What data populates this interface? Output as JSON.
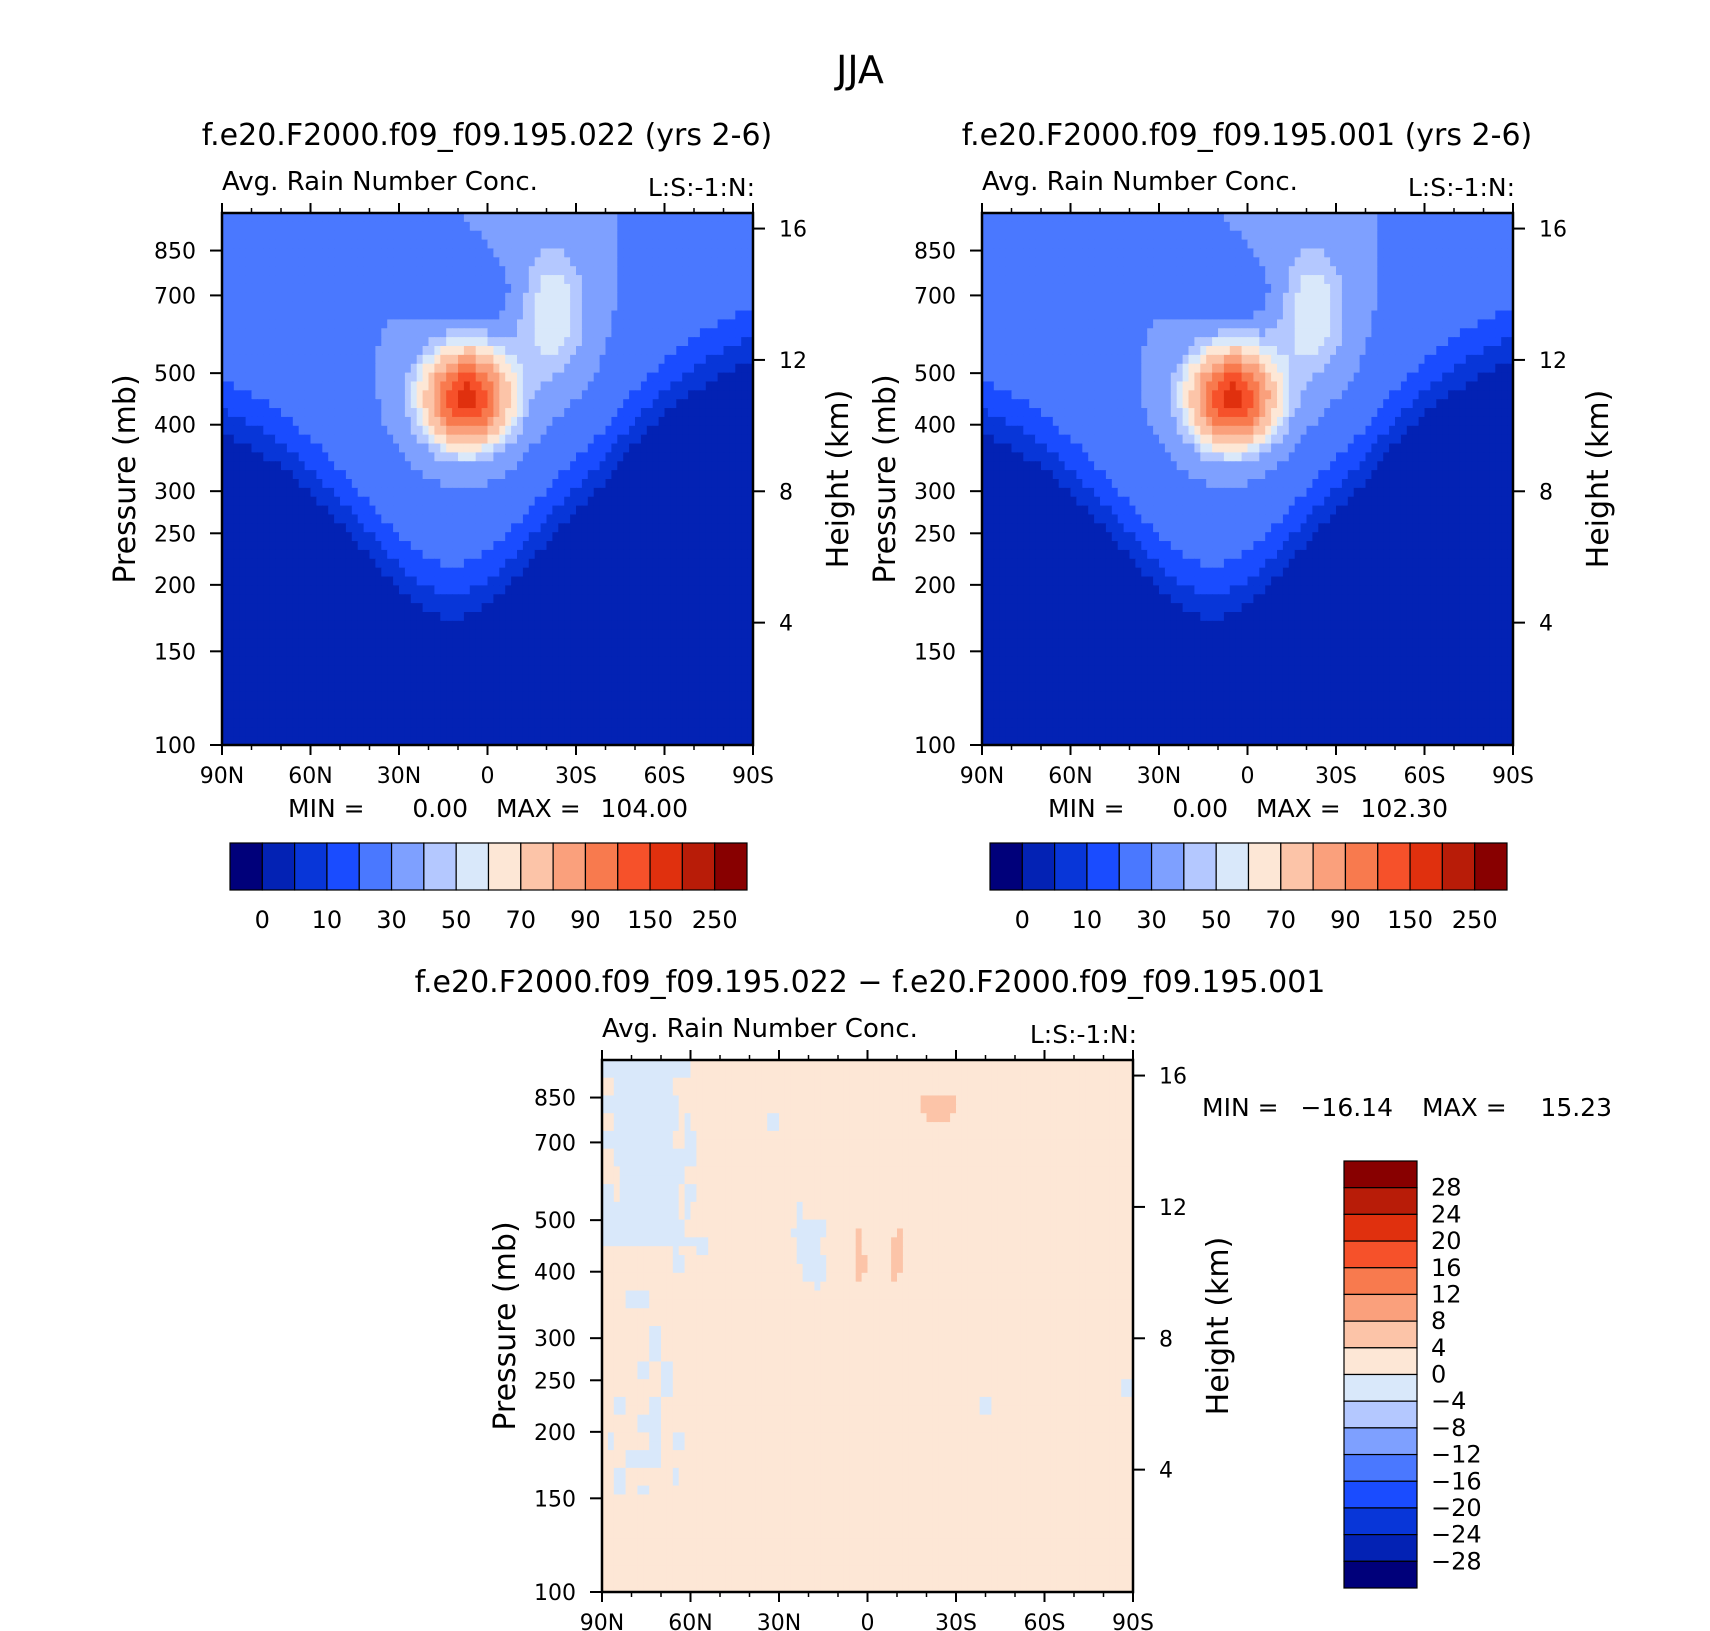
{
  "figure": {
    "title": "JJA"
  },
  "chart_data": [
    {
      "type": "heatmap",
      "title": "f.e20.F2000.f09_f09.195.022 (yrs 2-6)",
      "subtitle": "Avg. Rain Number Conc.",
      "units_label": "L:S:-1:N:",
      "xlabel": "",
      "ylabel": "Pressure (mb)",
      "y2label": "Height (km)",
      "x_ticks": [
        "90N",
        "60N",
        "30N",
        "0",
        "30S",
        "60S",
        "90S"
      ],
      "y_ticks": [
        100,
        150,
        200,
        250,
        300,
        400,
        500,
        700,
        850
      ],
      "y2_ticks": [
        16,
        12,
        8,
        4
      ],
      "ylim": [
        1000,
        100
      ],
      "y_scale": "log",
      "stats": {
        "min_label": "MIN =",
        "min": "0.00",
        "max_label": "MAX =",
        "max": "104.00"
      },
      "max_location": {
        "lat": 7,
        "pressure": 440
      },
      "colorbar": {
        "orientation": "horizontal",
        "labels": [
          "0",
          "10",
          "30",
          "50",
          "70",
          "90",
          "150",
          "250"
        ],
        "colors": [
          "#00007a",
          "#0322b4",
          "#0836d8",
          "#1a4cff",
          "#4a78ff",
          "#7ea0ff",
          "#b4c8ff",
          "#d9e8fa",
          "#fde7d6",
          "#fcc4a8",
          "#faa07c",
          "#f87a4e",
          "#f6512a",
          "#e0300e",
          "#b81c08",
          "#880000"
        ]
      }
    },
    {
      "type": "heatmap",
      "title": "f.e20.F2000.f09_f09.195.001 (yrs 2-6)",
      "subtitle": "Avg. Rain Number Conc.",
      "units_label": "L:S:-1:N:",
      "xlabel": "",
      "ylabel": "Pressure (mb)",
      "y2label": "Height (km)",
      "x_ticks": [
        "90N",
        "60N",
        "30N",
        "0",
        "30S",
        "60S",
        "90S"
      ],
      "y_ticks": [
        100,
        150,
        200,
        250,
        300,
        400,
        500,
        700,
        850
      ],
      "y2_ticks": [
        16,
        12,
        8,
        4
      ],
      "ylim": [
        1000,
        100
      ],
      "y_scale": "log",
      "stats": {
        "min_label": "MIN =",
        "min": "0.00",
        "max_label": "MAX =",
        "max": "102.30"
      },
      "max_location": {
        "lat": 5,
        "pressure": 440
      },
      "colorbar": {
        "orientation": "horizontal",
        "labels": [
          "0",
          "10",
          "30",
          "50",
          "70",
          "90",
          "150",
          "250"
        ],
        "colors": [
          "#00007a",
          "#0322b4",
          "#0836d8",
          "#1a4cff",
          "#4a78ff",
          "#7ea0ff",
          "#b4c8ff",
          "#d9e8fa",
          "#fde7d6",
          "#fcc4a8",
          "#faa07c",
          "#f87a4e",
          "#f6512a",
          "#e0300e",
          "#b81c08",
          "#880000"
        ]
      }
    },
    {
      "type": "heatmap",
      "title": "f.e20.F2000.f09_f09.195.022 − f.e20.F2000.f09_f09.195.001",
      "subtitle": "Avg. Rain Number Conc.",
      "units_label": "L:S:-1:N:",
      "xlabel": "",
      "ylabel": "Pressure (mb)",
      "y2label": "Height (km)",
      "x_ticks": [
        "90N",
        "60N",
        "30N",
        "0",
        "30S",
        "60S",
        "90S"
      ],
      "y_ticks": [
        100,
        150,
        200,
        250,
        300,
        400,
        500,
        700,
        850
      ],
      "y2_ticks": [
        16,
        12,
        8,
        4
      ],
      "ylim": [
        1000,
        100
      ],
      "y_scale": "log",
      "stats": {
        "min_label": "MIN =",
        "min": "−16.14",
        "max_label": "MAX =",
        "max": "15.23"
      },
      "colorbar": {
        "orientation": "vertical",
        "labels": [
          "28",
          "24",
          "20",
          "16",
          "12",
          "8",
          "4",
          "0",
          "−4",
          "−8",
          "−12",
          "−16",
          "−20",
          "−24",
          "−28"
        ],
        "colors": [
          "#880000",
          "#b81c08",
          "#e0300e",
          "#f6512a",
          "#f87a4e",
          "#faa07c",
          "#fcc4a8",
          "#fde7d6",
          "#d9e8fa",
          "#b4c8ff",
          "#7ea0ff",
          "#4a78ff",
          "#1a4cff",
          "#0836d8",
          "#0322b4",
          "#00007a"
        ]
      }
    }
  ]
}
